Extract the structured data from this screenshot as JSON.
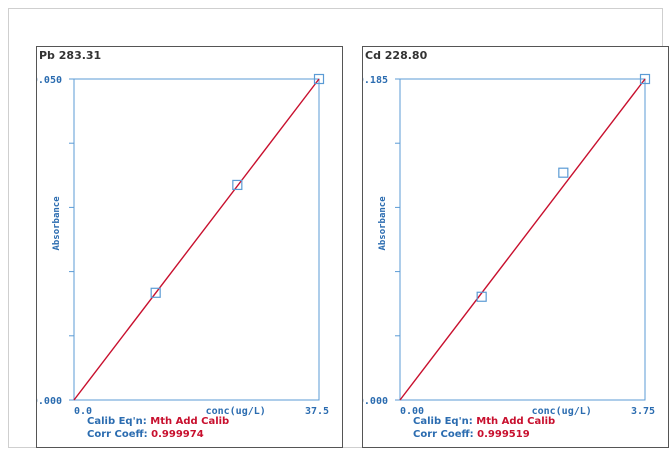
{
  "chart_data": [
    {
      "type": "scatter",
      "title": "Pb 283.31",
      "ylabel": "Absorbance",
      "xlabel": "conc(ug/L)",
      "ylim": [
        0.0,
        0.05
      ],
      "xlim": [
        0,
        37.5
      ],
      "y_tick_labels": [
        "0.050",
        "0.000"
      ],
      "x_tick_labels": [
        "0.0",
        "37.5"
      ],
      "points": [
        {
          "x": 12.5,
          "y": 0.0167
        },
        {
          "x": 25.0,
          "y": 0.0335
        },
        {
          "x": 37.5,
          "y": 0.05
        }
      ],
      "fit_line": {
        "x": [
          0,
          37.5
        ],
        "y": [
          0.0,
          0.05
        ]
      },
      "footer": {
        "eqn_label": "Calib Eq'n:",
        "eqn_value": "Mth Add Calib",
        "corr_label": "Corr Coeff:",
        "corr_value": "0.999974"
      },
      "colors": {
        "axis": "#5b9bd5",
        "line": "#c8102e",
        "marker": "#5b9bd5",
        "label": "#2b6cb0"
      }
    },
    {
      "type": "scatter",
      "title": "Cd 228.80",
      "ylabel": "Absorbance",
      "xlabel": "conc(ug/L)",
      "ylim": [
        0.0,
        0.185
      ],
      "xlim": [
        0,
        3.75
      ],
      "y_tick_labels": [
        "0.185",
        "0.000"
      ],
      "x_tick_labels": [
        "0.00",
        "3.75"
      ],
      "points": [
        {
          "x": 1.25,
          "y": 0.0595
        },
        {
          "x": 2.5,
          "y": 0.131
        },
        {
          "x": 3.75,
          "y": 0.185
        }
      ],
      "fit_line": {
        "x": [
          0,
          3.75
        ],
        "y": [
          0.0,
          0.185
        ]
      },
      "footer": {
        "eqn_label": "Calib Eq'n:",
        "eqn_value": "Mth Add Calib",
        "corr_label": "Corr Coeff:",
        "corr_value": "0.999519"
      },
      "colors": {
        "axis": "#5b9bd5",
        "line": "#c8102e",
        "marker": "#5b9bd5",
        "label": "#2b6cb0"
      }
    }
  ]
}
